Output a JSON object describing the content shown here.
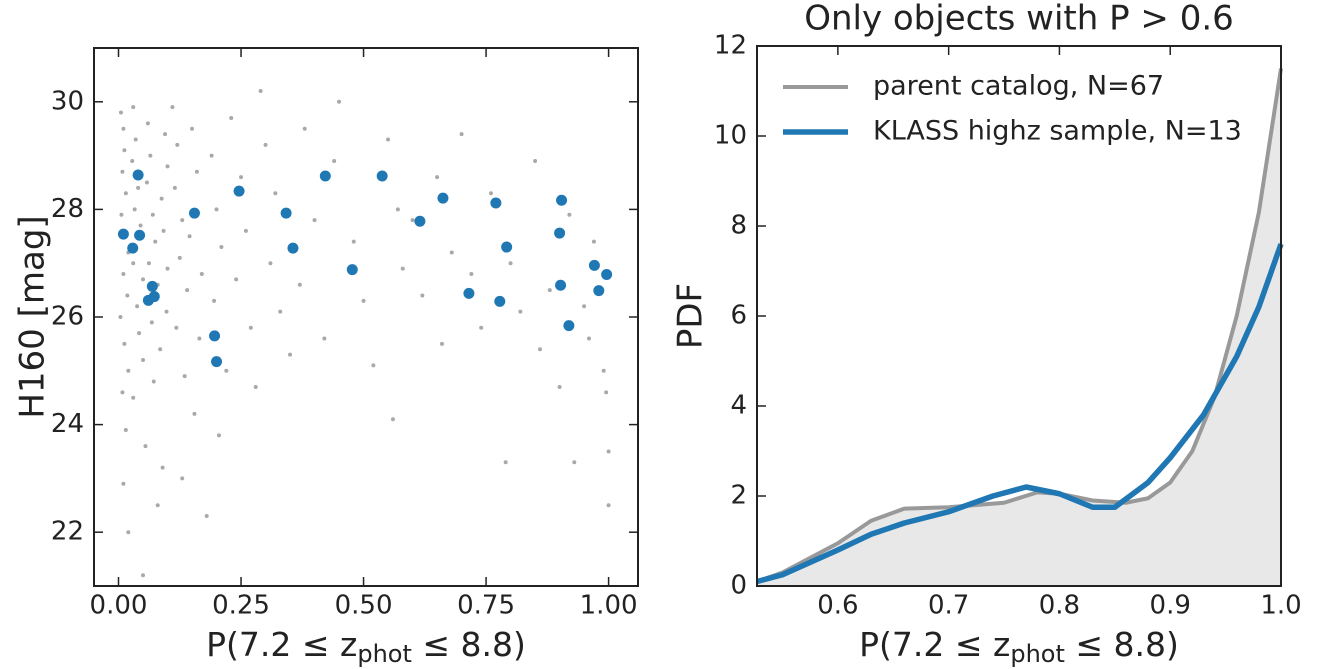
{
  "chart_data": [
    {
      "type": "scatter",
      "xlabel": [
        "P(7.2 ≤ z",
        "phot",
        " ≤ 8.8)"
      ],
      "ylabel": "H160 [mag]",
      "xlim": [
        -0.05,
        1.06
      ],
      "ylim": [
        21,
        31
      ],
      "xticks": [
        {
          "value": 0,
          "label": "0.00"
        },
        {
          "value": 0.25,
          "label": "0.25"
        },
        {
          "value": 0.5,
          "label": "0.50"
        },
        {
          "value": 0.75,
          "label": "0.75"
        },
        {
          "value": 1,
          "label": "1.00"
        }
      ],
      "yticks": [
        22,
        24,
        26,
        28,
        30
      ],
      "series": [
        {
          "color": "#a9a9a9",
          "size": 4,
          "x": [
            0.005,
            0.01,
            0.012,
            0.008,
            0.015,
            0.006,
            0.02,
            0.01,
            0.018,
            0.004,
            0.012,
            0.02,
            0.008,
            0.015,
            0.01,
            0.02,
            0.03,
            0.035,
            0.028,
            0.04,
            0.033,
            0.045,
            0.03,
            0.05,
            0.038,
            0.042,
            0.05,
            0.03,
            0.055,
            0.06,
            0.065,
            0.058,
            0.07,
            0.075,
            0.062,
            0.08,
            0.068,
            0.085,
            0.072,
            0.09,
            0.095,
            0.1,
            0.088,
            0.092,
            0.1,
            0.098,
            0.08,
            0.05,
            0.11,
            0.12,
            0.115,
            0.13,
            0.125,
            0.14,
            0.118,
            0.135,
            0.15,
            0.16,
            0.145,
            0.17,
            0.165,
            0.155,
            0.13,
            0.18,
            0.19,
            0.2,
            0.21,
            0.195,
            0.22,
            0.205,
            0.23,
            0.25,
            0.26,
            0.24,
            0.27,
            0.28,
            0.3,
            0.32,
            0.31,
            0.33,
            0.35,
            0.29,
            0.38,
            0.4,
            0.37,
            0.42,
            0.45,
            0.44,
            0.48,
            0.5,
            0.52,
            0.55,
            0.57,
            0.56,
            0.58,
            0.6,
            0.62,
            0.65,
            0.66,
            0.68,
            0.7,
            0.72,
            0.74,
            0.76,
            0.79,
            0.8,
            0.82,
            0.85,
            0.86,
            0.88,
            0.9,
            0.92,
            0.93,
            0.95,
            0.96,
            0.97,
            0.99,
            1.0,
            1.0,
            0.995
          ],
          "values": [
            29.8,
            29.5,
            29.1,
            28.7,
            28.3,
            27.9,
            27.2,
            26.8,
            26.4,
            26.0,
            25.5,
            25.0,
            24.6,
            23.9,
            22.9,
            22.0,
            29.9,
            29.3,
            28.9,
            28.4,
            28.0,
            27.7,
            27.0,
            26.7,
            26.2,
            25.7,
            25.2,
            24.5,
            23.6,
            29.6,
            29.0,
            28.5,
            27.9,
            27.4,
            27.0,
            26.6,
            25.9,
            25.4,
            24.8,
            23.2,
            29.4,
            28.8,
            28.2,
            27.6,
            26.9,
            26.1,
            22.5,
            21.2,
            29.9,
            29.2,
            28.4,
            27.8,
            27.1,
            26.5,
            25.8,
            24.9,
            29.5,
            28.7,
            27.5,
            26.8,
            25.6,
            24.2,
            23.0,
            22.3,
            29.0,
            28.0,
            27.3,
            26.3,
            25.0,
            23.8,
            29.7,
            28.6,
            27.6,
            26.7,
            25.8,
            24.7,
            29.2,
            28.3,
            27.0,
            26.1,
            25.3,
            30.2,
            29.5,
            27.8,
            26.6,
            25.6,
            30.0,
            28.9,
            27.4,
            26.3,
            25.1,
            29.3,
            28.0,
            24.1,
            26.9,
            27.8,
            26.4,
            28.6,
            25.5,
            27.2,
            29.4,
            26.8,
            25.8,
            28.3,
            23.3,
            27.0,
            26.1,
            28.9,
            25.4,
            26.5,
            24.7,
            27.9,
            23.3,
            26.2,
            25.6,
            27.4,
            25.0,
            23.5,
            22.5,
            24.6
          ]
        },
        {
          "color": "#1f77b4",
          "size": 11,
          "x": [
            0.01,
            0.04,
            0.043,
            0.029,
            0.069,
            0.061,
            0.073,
            0.155,
            0.196,
            0.2,
            0.246,
            0.342,
            0.356,
            0.422,
            0.477,
            0.538,
            0.615,
            0.662,
            0.715,
            0.77,
            0.778,
            0.792,
            0.9,
            0.904,
            0.902,
            0.919,
            0.971,
            0.98,
            0.996
          ],
          "values": [
            27.54,
            28.64,
            27.52,
            27.28,
            26.57,
            26.31,
            26.38,
            27.93,
            25.65,
            25.17,
            28.34,
            27.93,
            27.28,
            28.62,
            26.88,
            28.62,
            27.78,
            28.21,
            26.44,
            28.12,
            26.29,
            27.3,
            27.56,
            28.17,
            26.59,
            25.84,
            26.96,
            26.49,
            26.79
          ]
        }
      ]
    },
    {
      "type": "line",
      "title": "Only objects with P > 0.6",
      "xlabel": [
        "P(7.2 ≤ z",
        "phot",
        " ≤ 8.8)"
      ],
      "ylabel": "PDF",
      "xlim": [
        0.527,
        1.0
      ],
      "ylim": [
        0,
        12
      ],
      "xticks": [
        0.6,
        0.7,
        0.8,
        0.9,
        {
          "value": 1,
          "label": "1.0"
        }
      ],
      "yticks": [
        0,
        2,
        4,
        6,
        8,
        10,
        12
      ],
      "fill_color": "#e8e8e8",
      "series": [
        {
          "name": "parent catalog, N=67",
          "color": "#999999",
          "fill": true,
          "x": [
            0.527,
            0.55,
            0.6,
            0.63,
            0.66,
            0.7,
            0.75,
            0.78,
            0.8,
            0.83,
            0.86,
            0.88,
            0.9,
            0.92,
            0.94,
            0.96,
            0.98,
            1.0
          ],
          "values": [
            0.1,
            0.3,
            0.95,
            1.45,
            1.72,
            1.75,
            1.85,
            2.08,
            2.05,
            1.9,
            1.85,
            1.95,
            2.3,
            3.0,
            4.2,
            6.0,
            8.3,
            11.5
          ]
        },
        {
          "name": "KLASS highz sample, N=13",
          "color": "#1f77b4",
          "fill": false,
          "x": [
            0.527,
            0.55,
            0.6,
            0.63,
            0.66,
            0.7,
            0.74,
            0.77,
            0.8,
            0.83,
            0.85,
            0.88,
            0.9,
            0.93,
            0.96,
            0.98,
            1.0
          ],
          "values": [
            0.1,
            0.25,
            0.8,
            1.15,
            1.4,
            1.65,
            2.0,
            2.2,
            2.05,
            1.75,
            1.75,
            2.3,
            2.85,
            3.8,
            5.1,
            6.2,
            7.6
          ]
        }
      ]
    }
  ]
}
